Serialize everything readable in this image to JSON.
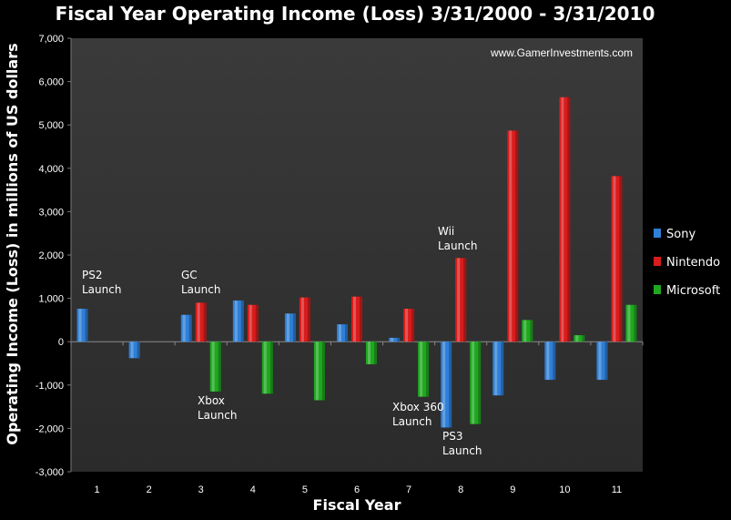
{
  "chart_data": {
    "type": "bar",
    "title": "Fiscal Year Operating Income (Loss) 3/31/2000 - 3/31/2010",
    "xlabel": "Fiscal Year",
    "ylabel": "Operating Income (Loss) in millions of US dollars",
    "categories": [
      "1",
      "2",
      "3",
      "4",
      "5",
      "6",
      "7",
      "8",
      "9",
      "10",
      "11"
    ],
    "ylim": [
      -3000,
      7000
    ],
    "yticks": [
      -3000,
      -2000,
      -1000,
      0,
      1000,
      2000,
      3000,
      4000,
      5000,
      6000,
      7000
    ],
    "ytick_labels": [
      "-3,000",
      "-2,000",
      "-1,000",
      "0",
      "1,000",
      "2,000",
      "3,000",
      "4,000",
      "5,000",
      "6,000",
      "7,000"
    ],
    "grid": false,
    "legend_position": "right",
    "series": [
      {
        "name": "Sony",
        "color": "#2f7fd6",
        "values": [
          760,
          -380,
          620,
          950,
          650,
          400,
          90,
          -1980,
          -1240,
          -880,
          -880
        ]
      },
      {
        "name": "Nintendo",
        "color": "#d81c1c",
        "values": [
          null,
          null,
          900,
          850,
          1020,
          1040,
          760,
          1930,
          4870,
          5640,
          3820
        ]
      },
      {
        "name": "Microsoft",
        "color": "#1fa81f",
        "values": [
          null,
          null,
          -1150,
          -1200,
          -1350,
          -520,
          -1270,
          -1900,
          500,
          150,
          850
        ]
      }
    ],
    "annotations": [
      {
        "lines": [
          "PS2",
          "Launch"
        ],
        "category": "1"
      },
      {
        "lines": [
          "GC",
          "Launch"
        ],
        "category": "3"
      },
      {
        "lines": [
          "Xbox",
          "Launch"
        ],
        "category": "3"
      },
      {
        "lines": [
          "Wii",
          "Launch"
        ],
        "category": "8"
      },
      {
        "lines": [
          "Xbox 360",
          "Launch"
        ],
        "category": "7"
      },
      {
        "lines": [
          "PS3",
          "Launch"
        ],
        "category": "8"
      }
    ],
    "watermark": "www.GamerInvestments.com"
  }
}
